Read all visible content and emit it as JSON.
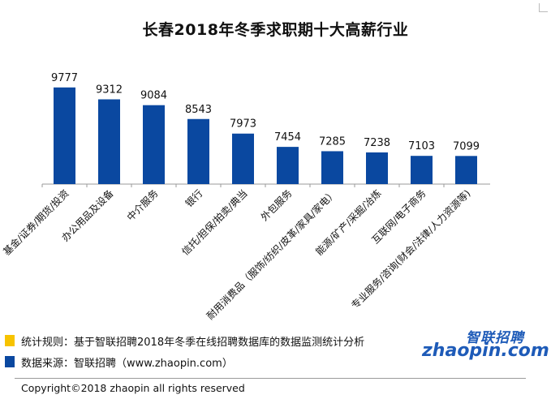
{
  "chart_data": {
    "type": "bar",
    "title": "长春2018年冬季求职期十大高薪行业",
    "categories": [
      "基金/证券/期货/投资",
      "办公用品及设备",
      "中介服务",
      "银行",
      "信托/担保/拍卖/典当",
      "外包服务",
      "耐用消费品（服饰/纺织/皮革/家具/家电）",
      "能源/矿产/采掘/冶炼",
      "互联网/电子商务",
      "专业服务/咨询(财会/法律/人力资源等)"
    ],
    "values": [
      9777,
      9312,
      9084,
      8543,
      7973,
      7454,
      7285,
      7238,
      7103,
      7099
    ],
    "ylim": [
      6000,
      10500
    ],
    "grid": false,
    "bar_color": "#0a48a0"
  },
  "notes": {
    "rule_text": "统计规则：基于智联招聘2018年冬季在线招聘数据库的数据监测统计分析",
    "rule_color": "#f7c300",
    "source_text": "数据来源：智联招聘（www.zhaopin.com）",
    "source_color": "#0a48a0"
  },
  "logo": {
    "cn": "智联招聘",
    "en": "zhaopin.com"
  },
  "copyright": "Copyright©2018 zhaopin all rights reserved"
}
